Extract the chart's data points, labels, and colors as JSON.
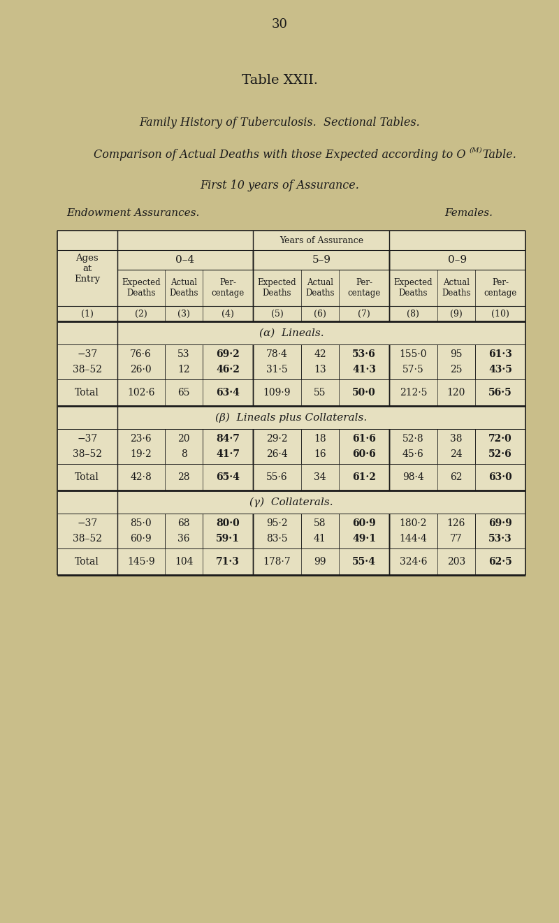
{
  "page_number": "30",
  "title": "Table XXII.",
  "subtitle1": "Family History of Tuberculosis.  Sectional Tables.",
  "subtitle2_pre": "Comparison of Actual Deaths with those Expected according to O",
  "subtitle2_sup": "(M)",
  "subtitle2_post": " Table.",
  "subtitle3": "First 10 years of Assurance.",
  "subtitle4_left": "Endowment Assurances.",
  "subtitle4_right": "Females.",
  "bg_color": "#c9be8a",
  "table_bg": "#e6e0c0",
  "header_years": "Years of Assurance",
  "col_groups": [
    "0–4",
    "5–9",
    "0–9"
  ],
  "col_subheaders": [
    "Expected\nDeaths",
    "Actual\nDeaths",
    "Per-\ncentage"
  ],
  "col_numbers": [
    "(2)",
    "(3)",
    "(4)",
    "(5)",
    "(6)",
    "(7)",
    "(8)",
    "(9)",
    "(10)"
  ],
  "row_header": "Ages\nat\nEntry",
  "row_number": "(1)",
  "sections": [
    {
      "label": "(α)  Lineals.",
      "rows": [
        {
          "age": "−37",
          "vals": [
            "76·6",
            "53",
            "69·2",
            "78·4",
            "42",
            "53·6",
            "155·0",
            "95",
            "61·3"
          ]
        },
        {
          "age": "38–52",
          "vals": [
            "26·0",
            "12",
            "46·2",
            "31·5",
            "13",
            "41·3",
            "57·5",
            "25",
            "43·5"
          ]
        }
      ],
      "total": {
        "age": "Total",
        "vals": [
          "102·6",
          "65",
          "63·4",
          "109·9",
          "55",
          "50·0",
          "212·5",
          "120",
          "56·5"
        ]
      }
    },
    {
      "label": "(β)  Lineals plus Collaterals.",
      "rows": [
        {
          "age": "−37",
          "vals": [
            "23·6",
            "20",
            "84·7",
            "29·2",
            "18",
            "61·6",
            "52·8",
            "38",
            "72·0"
          ]
        },
        {
          "age": "38–52",
          "vals": [
            "19·2",
            "8",
            "41·7",
            "26·4",
            "16",
            "60·6",
            "45·6",
            "24",
            "52·6"
          ]
        }
      ],
      "total": {
        "age": "Total",
        "vals": [
          "42·8",
          "28",
          "65·4",
          "55·6",
          "34",
          "61·2",
          "98·4",
          "62",
          "63·0"
        ]
      }
    },
    {
      "label": "(γ)  Collaterals.",
      "rows": [
        {
          "age": "−37",
          "vals": [
            "85·0",
            "68",
            "80·0",
            "95·2",
            "58",
            "60·9",
            "180·2",
            "126",
            "69·9"
          ]
        },
        {
          "age": "38–52",
          "vals": [
            "60·9",
            "36",
            "59·1",
            "83·5",
            "41",
            "49·1",
            "144·4",
            "77",
            "53·3"
          ]
        }
      ],
      "total": {
        "age": "Total",
        "vals": [
          "145·9",
          "104",
          "71·3",
          "178·7",
          "99",
          "55·4",
          "324·6",
          "203",
          "62·5"
        ]
      }
    }
  ],
  "text_color": "#1a1a1a",
  "line_color": "#1a1a1a",
  "fig_width": 8.0,
  "fig_height": 13.21,
  "dpi": 100
}
